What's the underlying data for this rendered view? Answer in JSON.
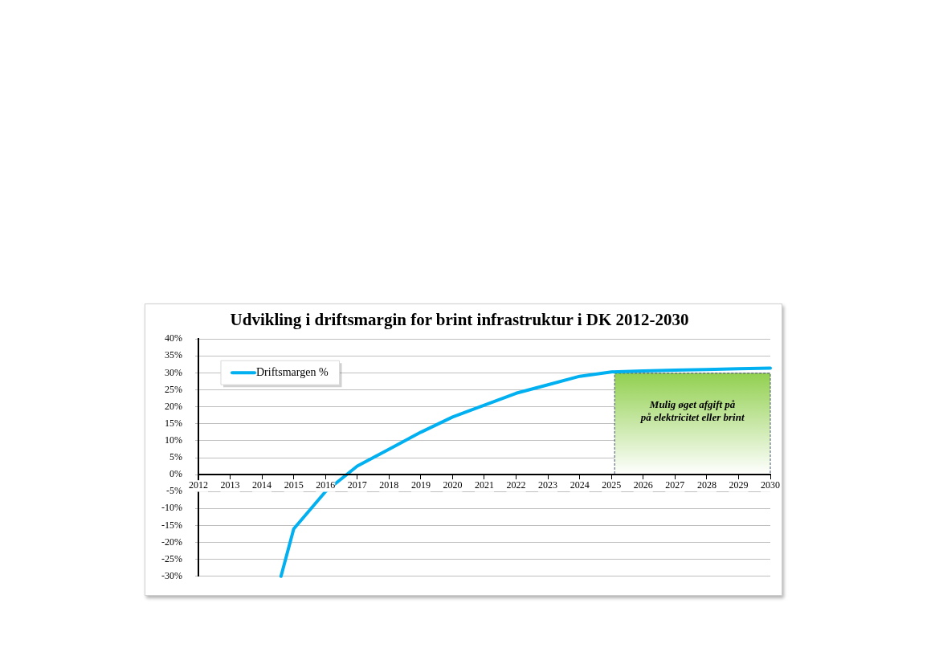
{
  "chart_data": {
    "type": "line",
    "title": "Udvikling i driftsmargin for brint infrastruktur i DK 2012-2030",
    "series": [
      {
        "name": "Driftsmargen %",
        "color": "#00b0f0",
        "x": [
          2014.6,
          2015,
          2016,
          2017,
          2018,
          2019,
          2020,
          2021,
          2022,
          2023,
          2024,
          2025,
          2026,
          2027,
          2028,
          2029,
          2030
        ],
        "values": [
          -30,
          -16,
          -5,
          2.5,
          7.5,
          12.5,
          17,
          20.5,
          24,
          26.5,
          29,
          30.3,
          30.6,
          30.8,
          31,
          31.2,
          31.4
        ]
      }
    ],
    "xlim": [
      2012,
      2030
    ],
    "xticks": [
      2012,
      2013,
      2014,
      2015,
      2016,
      2017,
      2018,
      2019,
      2020,
      2021,
      2022,
      2023,
      2024,
      2025,
      2026,
      2027,
      2028,
      2029,
      2030
    ],
    "ylim": [
      -30,
      40
    ],
    "yticks": [
      {
        "value": -30,
        "label": "-30%"
      },
      {
        "value": -25,
        "label": "-25%"
      },
      {
        "value": -20,
        "label": "-20%"
      },
      {
        "value": -15,
        "label": "-15%"
      },
      {
        "value": -10,
        "label": "-10%"
      },
      {
        "value": -5,
        "label": "-5%"
      },
      {
        "value": 0,
        "label": "0%"
      },
      {
        "value": 5,
        "label": "5%"
      },
      {
        "value": 10,
        "label": "10%"
      },
      {
        "value": 15,
        "label": "15%"
      },
      {
        "value": 20,
        "label": "20%"
      },
      {
        "value": 25,
        "label": "25%"
      },
      {
        "value": 30,
        "label": "30%"
      },
      {
        "value": 35,
        "label": "35%"
      },
      {
        "value": 40,
        "label": "40%"
      }
    ],
    "bands": [
      {
        "axis": "x",
        "from": 2025.1,
        "to": 2030,
        "label": "Mulig øget afgift på\npå elektricitet eller brint",
        "color": "#92d050"
      }
    ],
    "grid": "y",
    "legend": "top left",
    "marker": "none",
    "line_style": "solid"
  }
}
